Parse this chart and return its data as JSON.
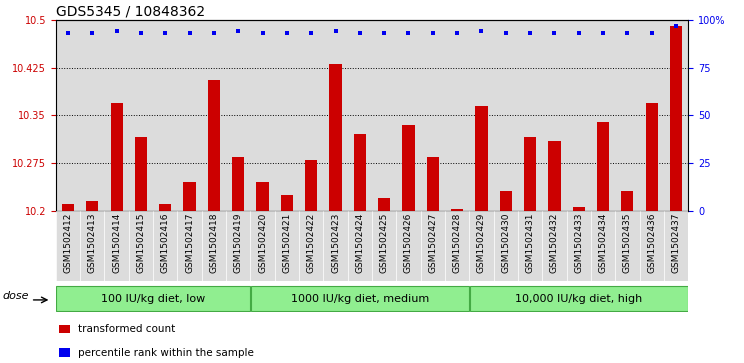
{
  "title": "GDS5345 / 10848362",
  "samples": [
    "GSM1502412",
    "GSM1502413",
    "GSM1502414",
    "GSM1502415",
    "GSM1502416",
    "GSM1502417",
    "GSM1502418",
    "GSM1502419",
    "GSM1502420",
    "GSM1502421",
    "GSM1502422",
    "GSM1502423",
    "GSM1502424",
    "GSM1502425",
    "GSM1502426",
    "GSM1502427",
    "GSM1502428",
    "GSM1502429",
    "GSM1502430",
    "GSM1502431",
    "GSM1502432",
    "GSM1502433",
    "GSM1502434",
    "GSM1502435",
    "GSM1502436",
    "GSM1502437"
  ],
  "bar_values": [
    10.21,
    10.215,
    10.37,
    10.315,
    10.21,
    10.245,
    10.405,
    10.285,
    10.245,
    10.225,
    10.28,
    10.43,
    10.32,
    10.22,
    10.335,
    10.285,
    10.203,
    10.365,
    10.23,
    10.315,
    10.31,
    10.205,
    10.34,
    10.23,
    10.37,
    10.49
  ],
  "percentile_values": [
    93,
    93,
    94,
    93,
    93,
    93,
    93,
    94,
    93,
    93,
    93,
    94,
    93,
    93,
    93,
    93,
    93,
    94,
    93,
    93,
    93,
    93,
    93,
    93,
    93,
    97
  ],
  "group_ranges": [
    [
      0,
      7
    ],
    [
      8,
      16
    ],
    [
      17,
      25
    ]
  ],
  "group_labels": [
    "100 IU/kg diet, low",
    "1000 IU/kg diet, medium",
    "10,000 IU/kg diet, high"
  ],
  "ylim_left": [
    10.2,
    10.5
  ],
  "ylim_right": [
    0,
    100
  ],
  "yticks_left": [
    10.2,
    10.275,
    10.35,
    10.425,
    10.5
  ],
  "ytick_labels_left": [
    "10.2",
    "10.275",
    "10.35",
    "10.425",
    "10.5"
  ],
  "yticks_right": [
    0,
    25,
    50,
    75,
    100
  ],
  "ytick_labels_right": [
    "0",
    "25",
    "50",
    "75",
    "100%"
  ],
  "bar_color": "#CC0000",
  "dot_color": "#0000EE",
  "bg_color": "#DCDCDC",
  "group_color": "#90EE90",
  "group_edge_color": "#44AA44",
  "legend_items": [
    {
      "label": "transformed count",
      "color": "#CC0000"
    },
    {
      "label": "percentile rank within the sample",
      "color": "#0000EE"
    }
  ],
  "dose_label": "dose",
  "title_fontsize": 10,
  "tick_fontsize": 6.5,
  "axis_tick_fontsize": 7,
  "group_fontsize": 8,
  "legend_fontsize": 7.5
}
